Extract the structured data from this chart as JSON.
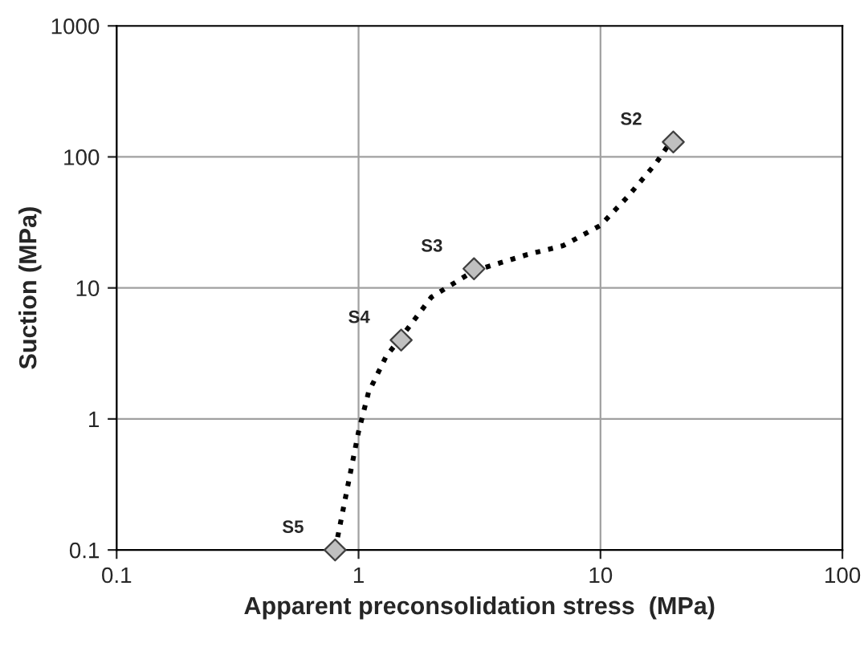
{
  "chart_data": {
    "type": "line",
    "log": "xy",
    "xlabel": "Apparent preconsolidation stress  (MPa)",
    "ylabel": "Suction (MPa)",
    "xlim": [
      0.1,
      100
    ],
    "ylim": [
      0.1,
      1000
    ],
    "xticks": [
      0.1,
      1,
      10,
      100
    ],
    "yticks": [
      0.1,
      1,
      10,
      100,
      1000
    ],
    "grid": true,
    "legend": false,
    "series": [
      {
        "color": "#000000",
        "line_style": "dotted",
        "marker": "none",
        "x": [
          0.8,
          0.9,
          1.0,
          1.1,
          1.3,
          1.5,
          2,
          3,
          5,
          7,
          10,
          13,
          17,
          21
        ],
        "values": [
          0.1,
          0.3,
          0.8,
          1.6,
          3,
          4.2,
          8.5,
          13.5,
          18,
          21,
          30,
          50,
          90,
          160
        ]
      },
      {
        "type": "scatter",
        "color": "#c0c0c0",
        "marker": "diamond",
        "x": [
          0.8,
          1.5,
          3,
          20
        ],
        "values": [
          0.1,
          4,
          14,
          130
        ]
      }
    ],
    "annotations": [
      {
        "text": "S5",
        "x": 0.8,
        "y": 0.1
      },
      {
        "text": "S4",
        "x": 1.5,
        "y": 4
      },
      {
        "text": "S3",
        "x": 3,
        "y": 14
      },
      {
        "text": "S2",
        "x": 20,
        "y": 130
      }
    ]
  }
}
